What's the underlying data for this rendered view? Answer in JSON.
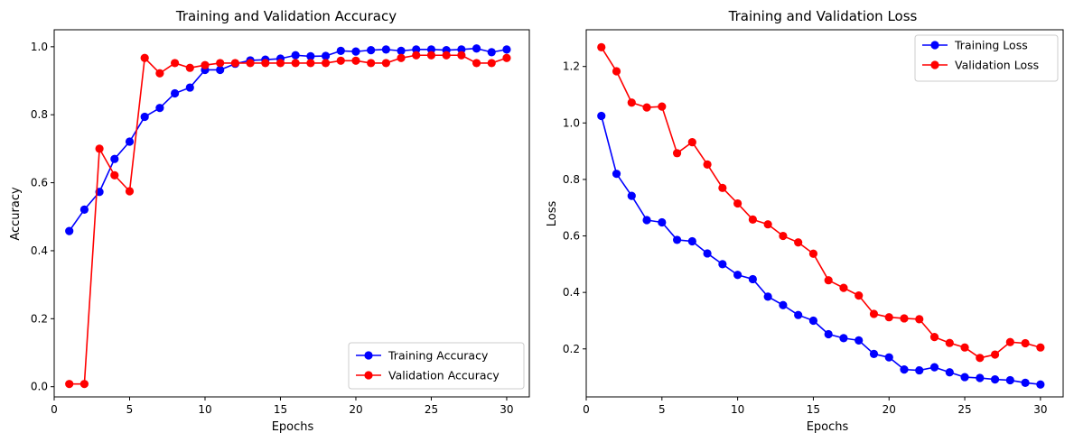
{
  "chart_data": [
    {
      "type": "line",
      "title": "Training and Validation Accuracy",
      "xlabel": "Epochs",
      "ylabel": "Accuracy",
      "xlim": [
        0,
        31.5
      ],
      "ylim": [
        -0.03,
        1.05
      ],
      "xticks": [
        0,
        5,
        10,
        15,
        20,
        25,
        30
      ],
      "xtick_labels": [
        "0",
        "5",
        "10",
        "15",
        "20",
        "25",
        "30"
      ],
      "yticks": [
        0.0,
        0.2,
        0.4,
        0.6,
        0.8,
        1.0
      ],
      "ytick_labels": [
        "0.0",
        "0.2",
        "0.4",
        "0.6",
        "0.8",
        "1.0"
      ],
      "grid": false,
      "legend_position": "lower-right",
      "x": [
        1,
        2,
        3,
        4,
        5,
        6,
        7,
        8,
        9,
        10,
        11,
        12,
        13,
        14,
        15,
        16,
        17,
        18,
        19,
        20,
        21,
        22,
        23,
        24,
        25,
        26,
        27,
        28,
        29,
        30
      ],
      "series": [
        {
          "name": "Training Accuracy",
          "color": "#0000ff",
          "values": [
            0.458,
            0.521,
            0.573,
            0.67,
            0.721,
            0.794,
            0.82,
            0.863,
            0.88,
            0.932,
            0.932,
            0.95,
            0.96,
            0.962,
            0.965,
            0.975,
            0.972,
            0.973,
            0.988,
            0.986,
            0.99,
            0.992,
            0.988,
            0.992,
            0.992,
            0.99,
            0.992,
            0.995,
            0.984,
            0.992
          ]
        },
        {
          "name": "Validation Accuracy",
          "color": "#ff0000",
          "values": [
            0.008,
            0.008,
            0.7,
            0.622,
            0.575,
            0.967,
            0.922,
            0.952,
            0.938,
            0.946,
            0.952,
            0.952,
            0.952,
            0.952,
            0.952,
            0.952,
            0.952,
            0.952,
            0.959,
            0.959,
            0.952,
            0.952,
            0.967,
            0.975,
            0.975,
            0.975,
            0.975,
            0.952,
            0.952,
            0.967
          ]
        }
      ]
    },
    {
      "type": "line",
      "title": "Training and Validation Loss",
      "xlabel": "Epochs",
      "ylabel": "Loss",
      "xlim": [
        0,
        31.5
      ],
      "ylim": [
        0.03,
        1.33
      ],
      "xticks": [
        0,
        5,
        10,
        15,
        20,
        25,
        30
      ],
      "xtick_labels": [
        "0",
        "5",
        "10",
        "15",
        "20",
        "25",
        "30"
      ],
      "yticks": [
        0.2,
        0.4,
        0.6,
        0.8,
        1.0,
        1.2
      ],
      "ytick_labels": [
        "0.2",
        "0.4",
        "0.6",
        "0.8",
        "1.0",
        "1.2"
      ],
      "grid": false,
      "legend_position": "upper-right",
      "x": [
        1,
        2,
        3,
        4,
        5,
        6,
        7,
        8,
        9,
        10,
        11,
        12,
        13,
        14,
        15,
        16,
        17,
        18,
        19,
        20,
        21,
        22,
        23,
        24,
        25,
        26,
        27,
        28,
        29,
        30
      ],
      "series": [
        {
          "name": "Training Loss",
          "color": "#0000ff",
          "values": [
            1.025,
            0.82,
            0.742,
            0.656,
            0.648,
            0.586,
            0.581,
            0.538,
            0.5,
            0.462,
            0.447,
            0.385,
            0.355,
            0.32,
            0.3,
            0.252,
            0.238,
            0.23,
            0.182,
            0.17,
            0.127,
            0.124,
            0.135,
            0.117,
            0.1,
            0.097,
            0.092,
            0.089,
            0.08,
            0.074
          ]
        },
        {
          "name": "Validation Loss",
          "color": "#ff0000",
          "values": [
            1.268,
            1.183,
            1.072,
            1.055,
            1.058,
            0.893,
            0.932,
            0.853,
            0.77,
            0.715,
            0.658,
            0.641,
            0.6,
            0.577,
            0.537,
            0.443,
            0.416,
            0.389,
            0.324,
            0.312,
            0.308,
            0.305,
            0.242,
            0.221,
            0.205,
            0.168,
            0.18,
            0.224,
            0.22,
            0.205
          ]
        }
      ]
    }
  ]
}
